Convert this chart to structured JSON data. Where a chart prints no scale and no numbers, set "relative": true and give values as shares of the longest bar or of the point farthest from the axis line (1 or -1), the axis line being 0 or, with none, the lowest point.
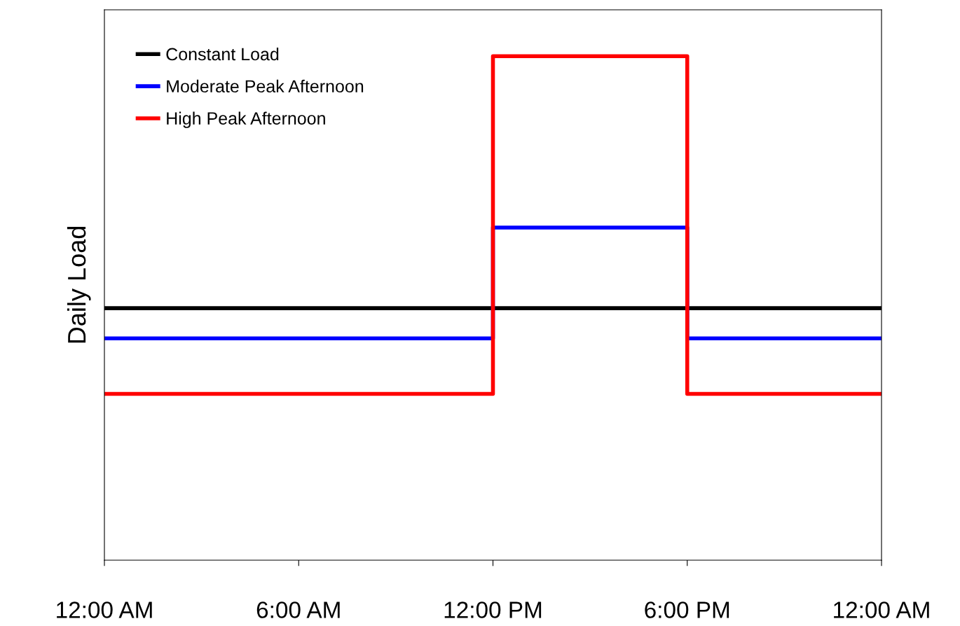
{
  "chart_data": {
    "type": "step",
    "ylabel": "Daily Load",
    "relative": true,
    "xlim": [
      0,
      24
    ],
    "xticks": [
      {
        "value": 0,
        "label": "12:00 AM"
      },
      {
        "value": 6,
        "label": "6:00 AM"
      },
      {
        "value": 12,
        "label": "12:00 PM"
      },
      {
        "value": 18,
        "label": "6:00 PM"
      },
      {
        "value": 24,
        "label": "12:00 AM"
      }
    ],
    "legend": "top left",
    "grid": false,
    "series": [
      {
        "name": "Constant Load",
        "color": "#000000",
        "x": [
          0,
          24
        ],
        "values": [
          0.5,
          0.5
        ]
      },
      {
        "name": "Moderate Peak Afternoon",
        "color": "#0000ff",
        "x": [
          0,
          12,
          18,
          24
        ],
        "values": [
          0.44,
          0.66,
          0.44,
          0.44
        ]
      },
      {
        "name": "High Peak Afternoon",
        "color": "#ff0000",
        "x": [
          0,
          12,
          18,
          24
        ],
        "values": [
          0.33,
          1,
          0.33,
          0.33
        ]
      }
    ]
  }
}
